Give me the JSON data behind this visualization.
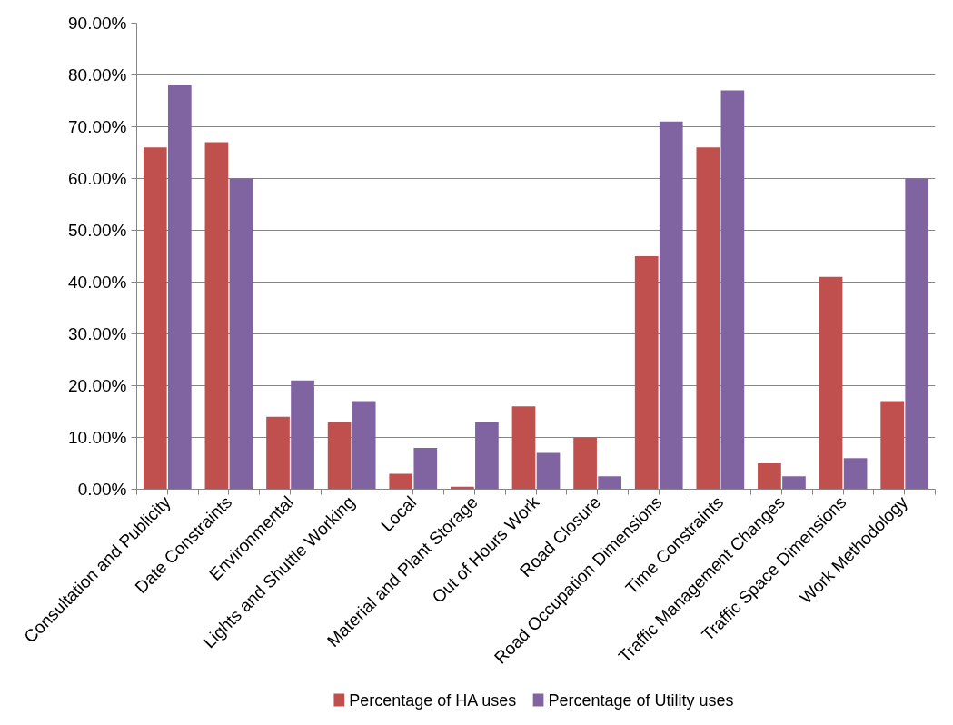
{
  "chart_data": {
    "type": "bar",
    "categories": [
      "Consultation and Publicity",
      "Date Constraints",
      "Environmental",
      "Lights and Shuttle Working",
      "Local",
      "Material and Plant Storage",
      "Out of Hours Work",
      "Road Closure",
      "Road Occupation Dimensions",
      "Time Constraints",
      "Traffic Management Changes",
      "Traffic Space Dimensions",
      "Work Methodology"
    ],
    "series": [
      {
        "name": "Percentage of HA uses",
        "color": "#c0504d",
        "values": [
          66,
          67,
          14,
          13,
          3,
          0.5,
          16,
          10,
          45,
          66,
          5,
          41,
          17
        ]
      },
      {
        "name": "Percentage of Utility uses",
        "color": "#8064a2",
        "values": [
          78,
          60,
          21,
          17,
          8,
          13,
          7,
          2.5,
          71,
          77,
          2.5,
          6,
          60
        ]
      }
    ],
    "ylim": [
      0,
      90
    ],
    "yticks": [
      {
        "value": 0,
        "label": "0.00%"
      },
      {
        "value": 10,
        "label": "10.00%"
      },
      {
        "value": 20,
        "label": "20.00%"
      },
      {
        "value": 30,
        "label": "30.00%"
      },
      {
        "value": 40,
        "label": "40.00%"
      },
      {
        "value": 50,
        "label": "50.00%"
      },
      {
        "value": 60,
        "label": "60.00%"
      },
      {
        "value": 70,
        "label": "70.00%"
      },
      {
        "value": 80,
        "label": "80.00%"
      },
      {
        "value": 90,
        "label": "90.00%"
      }
    ],
    "grid": "y",
    "legend": "bottom"
  }
}
